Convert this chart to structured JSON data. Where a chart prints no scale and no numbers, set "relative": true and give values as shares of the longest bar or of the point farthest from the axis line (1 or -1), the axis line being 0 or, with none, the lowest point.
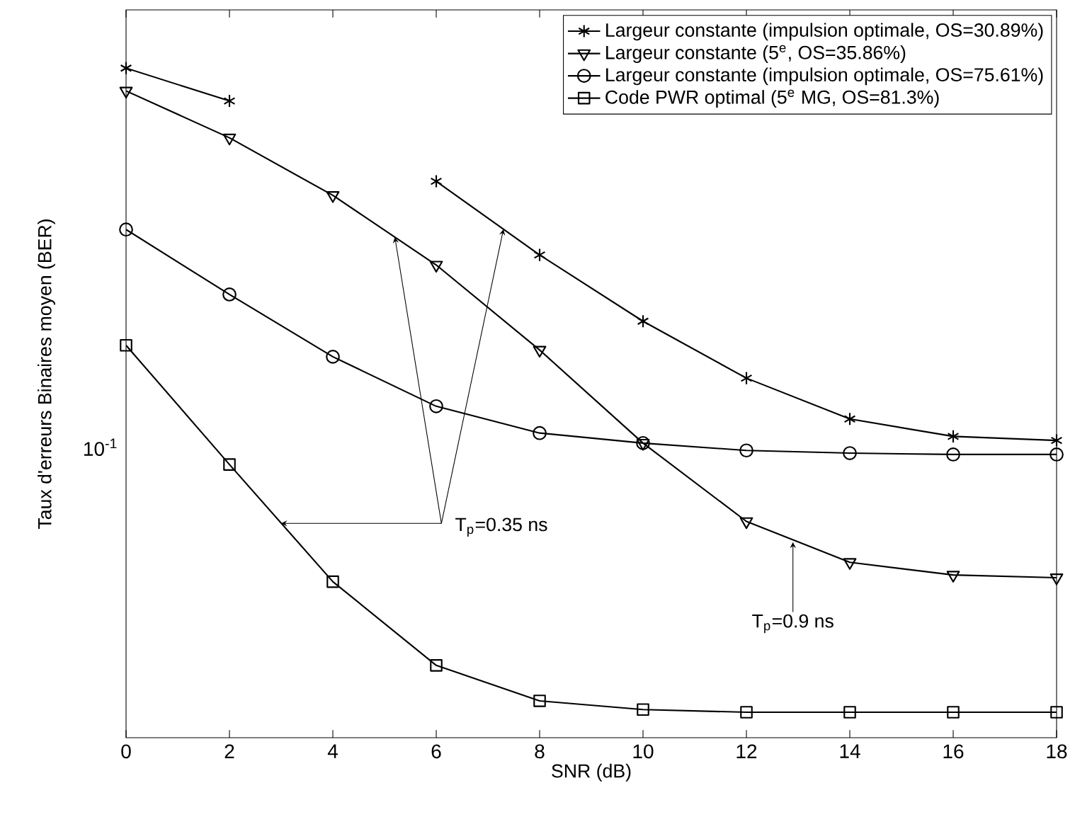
{
  "chart_data": {
    "type": "line",
    "xlabel": "SNR (dB)",
    "ylabel": "Taux d'erreurs Binaires moyen (BER)",
    "relative": true,
    "x": [
      0,
      2,
      4,
      6,
      8,
      10,
      12,
      14,
      16,
      18
    ],
    "series": [
      {
        "name": "Largeur constante (impulsion optimale, OS=30.89%)",
        "color": "#000000",
        "marker": "cross",
        "values": [
          1.0,
          0.951,
          null,
          0.831,
          0.721,
          0.622,
          0.537,
          0.476,
          0.45,
          0.444
        ]
      },
      {
        "name": "Largeur constante (5$^{e}$, OS=35.86%)",
        "color": "#000000",
        "marker": "triangle",
        "values": [
          0.966,
          0.896,
          0.81,
          0.706,
          0.579,
          0.44,
          0.323,
          0.262,
          0.243,
          0.239
        ]
      },
      {
        "name": "Largeur constante (impulsion optimale, OS=75.61%)",
        "color": "#000000",
        "marker": "circle",
        "values": [
          0.759,
          0.662,
          0.569,
          0.495,
          0.455,
          0.44,
          0.429,
          0.425,
          0.423,
          0.423
        ]
      },
      {
        "name": "Code PWR optimal (5$^{e}$ MG, OS=81.3%)",
        "color": "#000000",
        "marker": "square",
        "values": [
          0.586,
          0.408,
          0.233,
          0.108,
          0.055,
          0.042,
          0.038,
          0.038,
          0.038,
          0.038
        ]
      }
    ],
    "xlim": [
      0,
      18
    ],
    "xticks": [
      0,
      2,
      4,
      6,
      8,
      10,
      12,
      14,
      16,
      18
    ],
    "legend": "top right",
    "line_style": "solid",
    "annotations": [
      {
        "text": "T$_{p}$=0.35 ns",
        "x": 3,
        "y": 0.32
      },
      {
        "text": "T$_{p}$=0.9 ns",
        "x": 12.9,
        "y": 0.292
      },
      "10$^{-1}$"
    ]
  }
}
